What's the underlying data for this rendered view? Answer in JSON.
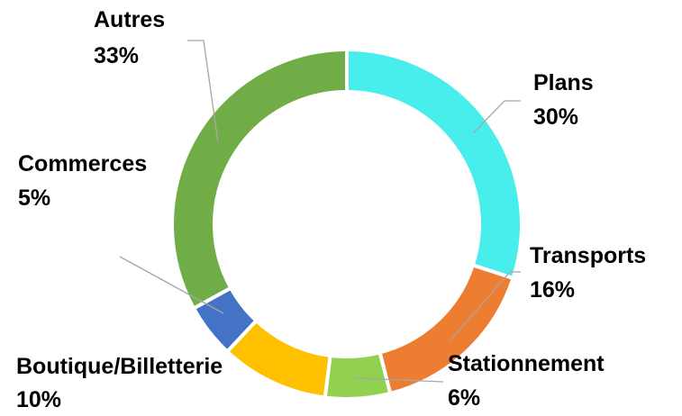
{
  "chart_data": {
    "type": "donut",
    "categories": [
      "Plans",
      "Transports",
      "Stationnement",
      "Boutique/Billetterie",
      "Commerces",
      "Autres"
    ],
    "values": [
      30,
      16,
      6,
      10,
      5,
      33
    ],
    "value_labels": [
      "30%",
      "16%",
      "6%",
      "10%",
      "5%",
      "33%"
    ],
    "colors": [
      "#48EEEC",
      "#ED7D31",
      "#92D050",
      "#FFC000",
      "#4472C4",
      "#70AD47"
    ]
  }
}
